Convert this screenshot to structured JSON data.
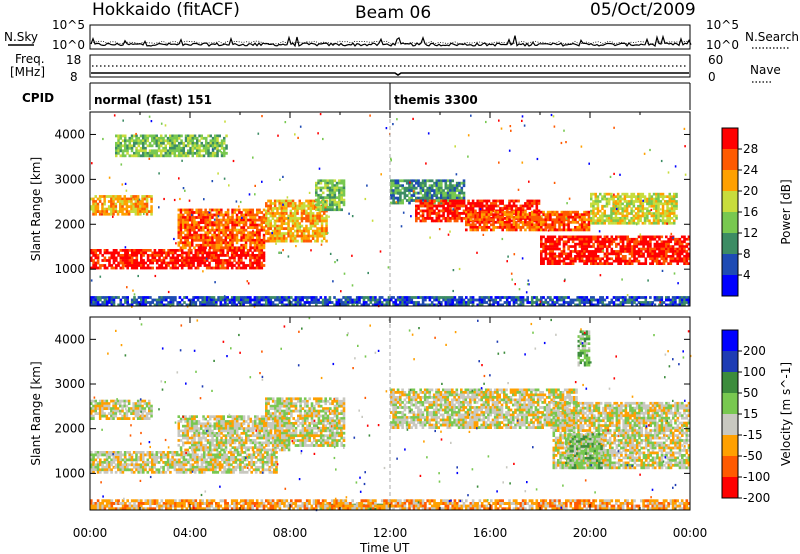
{
  "header": {
    "station": "Hokkaido (fitACF)",
    "beam": "Beam 06",
    "date": "05/Oct/2009"
  },
  "labels": {
    "nsky": "N.Sky",
    "nsearch": "N.Search",
    "freq_line1": "Freq.",
    "freq_line2": "[MHz]",
    "nave": "Nave",
    "cpid": "CPID",
    "noise_tick_high": "10^5",
    "noise_tick_low": "10^0",
    "freq_tick_high": "18",
    "freq_tick_low": "8",
    "nave_tick_high": "60",
    "nave_tick_low": "0"
  },
  "cpid_segments": [
    {
      "label": "normal (fast) 151",
      "start_hour": 0
    },
    {
      "label": "themis 3300",
      "start_hour": 12
    }
  ],
  "colors": {
    "power": [
      "#0000ff",
      "#1e4bb4",
      "#3c8c64",
      "#78c850",
      "#c8dc3c",
      "#ffa000",
      "#ff5a00",
      "#ff0000"
    ],
    "velocity": [
      "#0000ff",
      "#1e3cb4",
      "#3c8c3c",
      "#78c850",
      "#c8c8c0",
      "#ffa000",
      "#ff5a00",
      "#ff0000"
    ],
    "ground_scatter": "#c8c8c0"
  },
  "chart_data": [
    {
      "type": "heatmap",
      "name": "power",
      "xlabel": "Time UT",
      "ylabel": "Slant Range [km]",
      "ylim": [
        180,
        4500
      ],
      "xlim": [
        0,
        24
      ],
      "yticks": [
        "1000",
        "2000",
        "3000",
        "4000"
      ],
      "colorbar_label": "Power [dB]",
      "colorbar_ticks": [
        "4",
        "8",
        "12",
        "16",
        "20",
        "24",
        "28"
      ],
      "regions": [
        {
          "t0": 0,
          "t1": 2.5,
          "r0": 2200,
          "r1": 2650,
          "level": 5
        },
        {
          "t0": 0,
          "t1": 7.0,
          "r0": 1000,
          "r1": 1450,
          "level": 7
        },
        {
          "t0": 3.5,
          "t1": 7.0,
          "r0": 1450,
          "r1": 2350,
          "level": 6
        },
        {
          "t0": 7.0,
          "t1": 9.5,
          "r0": 1600,
          "r1": 2550,
          "level": 5
        },
        {
          "t0": 9.0,
          "t1": 10.2,
          "r0": 2300,
          "r1": 3000,
          "level": 3
        },
        {
          "t0": 1.0,
          "t1": 5.5,
          "r0": 3500,
          "r1": 4000,
          "level": 3
        },
        {
          "t0": 12.0,
          "t1": 15.0,
          "r0": 2450,
          "r1": 3000,
          "level": 2
        },
        {
          "t0": 13.0,
          "t1": 18.0,
          "r0": 2050,
          "r1": 2550,
          "level": 7
        },
        {
          "t0": 15.0,
          "t1": 20.0,
          "r0": 1850,
          "r1": 2300,
          "level": 6
        },
        {
          "t0": 18.0,
          "t1": 24.0,
          "r0": 1100,
          "r1": 1750,
          "level": 7
        },
        {
          "t0": 20.0,
          "t1": 23.5,
          "r0": 2000,
          "r1": 2700,
          "level": 4
        },
        {
          "t0": 0,
          "t1": 24,
          "r0": 180,
          "r1": 400,
          "level": 1
        }
      ]
    },
    {
      "type": "heatmap",
      "name": "velocity",
      "xlabel": "Time UT",
      "ylabel": "Slant Range [km]",
      "ylim": [
        180,
        4500
      ],
      "xlim": [
        0,
        24
      ],
      "yticks": [
        "1000",
        "2000",
        "3000",
        "4000"
      ],
      "colorbar_label": "Velocity [m s^-1]",
      "colorbar_ticks": [
        "200",
        "100",
        "50",
        "15",
        "-15",
        "-50",
        "-100",
        "-200"
      ],
      "regions": [
        {
          "t0": 0,
          "t1": 7.5,
          "r0": 1000,
          "r1": 1500,
          "level": 4
        },
        {
          "t0": 0,
          "t1": 2.5,
          "r0": 2200,
          "r1": 2650,
          "level": 4
        },
        {
          "t0": 3.5,
          "t1": 8.0,
          "r0": 1500,
          "r1": 2300,
          "level": 4
        },
        {
          "t0": 7.0,
          "t1": 10.2,
          "r0": 1600,
          "r1": 2700,
          "level": 4
        },
        {
          "t0": 12.0,
          "t1": 19.5,
          "r0": 2000,
          "r1": 2900,
          "level": 4
        },
        {
          "t0": 18.5,
          "t1": 24.0,
          "r0": 1100,
          "r1": 2600,
          "level": 4
        },
        {
          "t0": 19.0,
          "t1": 20.5,
          "r0": 1100,
          "r1": 1900,
          "level": 3
        },
        {
          "t0": 19.5,
          "t1": 20.0,
          "r0": 3400,
          "r1": 4200,
          "level": 3
        },
        {
          "t0": 9.0,
          "t1": 12.0,
          "r0": 180,
          "r1": 320,
          "level": 3
        },
        {
          "t0": 0,
          "t1": 24,
          "r0": 180,
          "r1": 420,
          "level": 5
        }
      ]
    }
  ],
  "time_axis": {
    "ticks": [
      "00:00",
      "04:00",
      "08:00",
      "12:00",
      "16:00",
      "20:00",
      "00:00"
    ],
    "label": "Time UT"
  }
}
